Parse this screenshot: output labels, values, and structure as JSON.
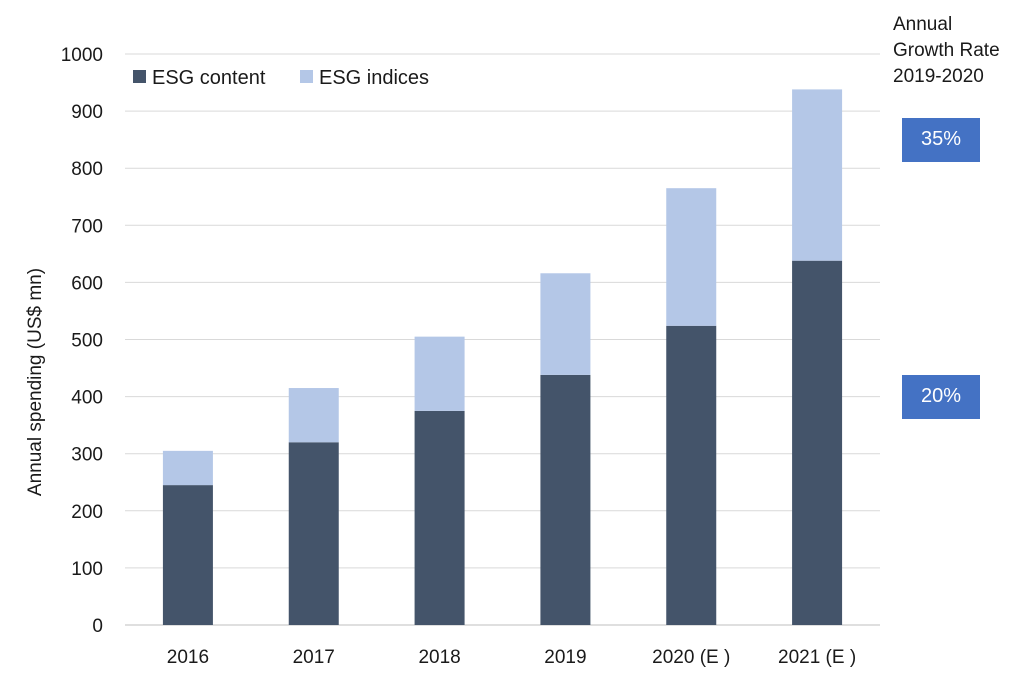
{
  "chart_data": {
    "type": "bar",
    "stacked": true,
    "categories": [
      "2016",
      "2017",
      "2018",
      "2019",
      "2020 (E )",
      "2021 (E )"
    ],
    "series": [
      {
        "name": "ESG content",
        "color": "#44546a",
        "values": [
          245,
          320,
          375,
          438,
          524,
          638
        ]
      },
      {
        "name": "ESG indices",
        "color": "#b4c7e7",
        "values": [
          60,
          95,
          130,
          178,
          241,
          300
        ]
      }
    ],
    "ylabel": "Annual spending (US$ mn)",
    "xlabel": "",
    "ylim": [
      0,
      1000
    ],
    "yticks": [
      0,
      100,
      200,
      300,
      400,
      500,
      600,
      700,
      800,
      900,
      1000
    ],
    "grid": true,
    "legend": "top-left"
  },
  "growth_rate": {
    "header_lines": [
      "Annual",
      "Growth Rate",
      "2019-2020"
    ],
    "box_color": "#4472c4",
    "values": [
      {
        "label": "35%",
        "at": 850
      },
      {
        "label": "20%",
        "at": 400
      }
    ]
  }
}
